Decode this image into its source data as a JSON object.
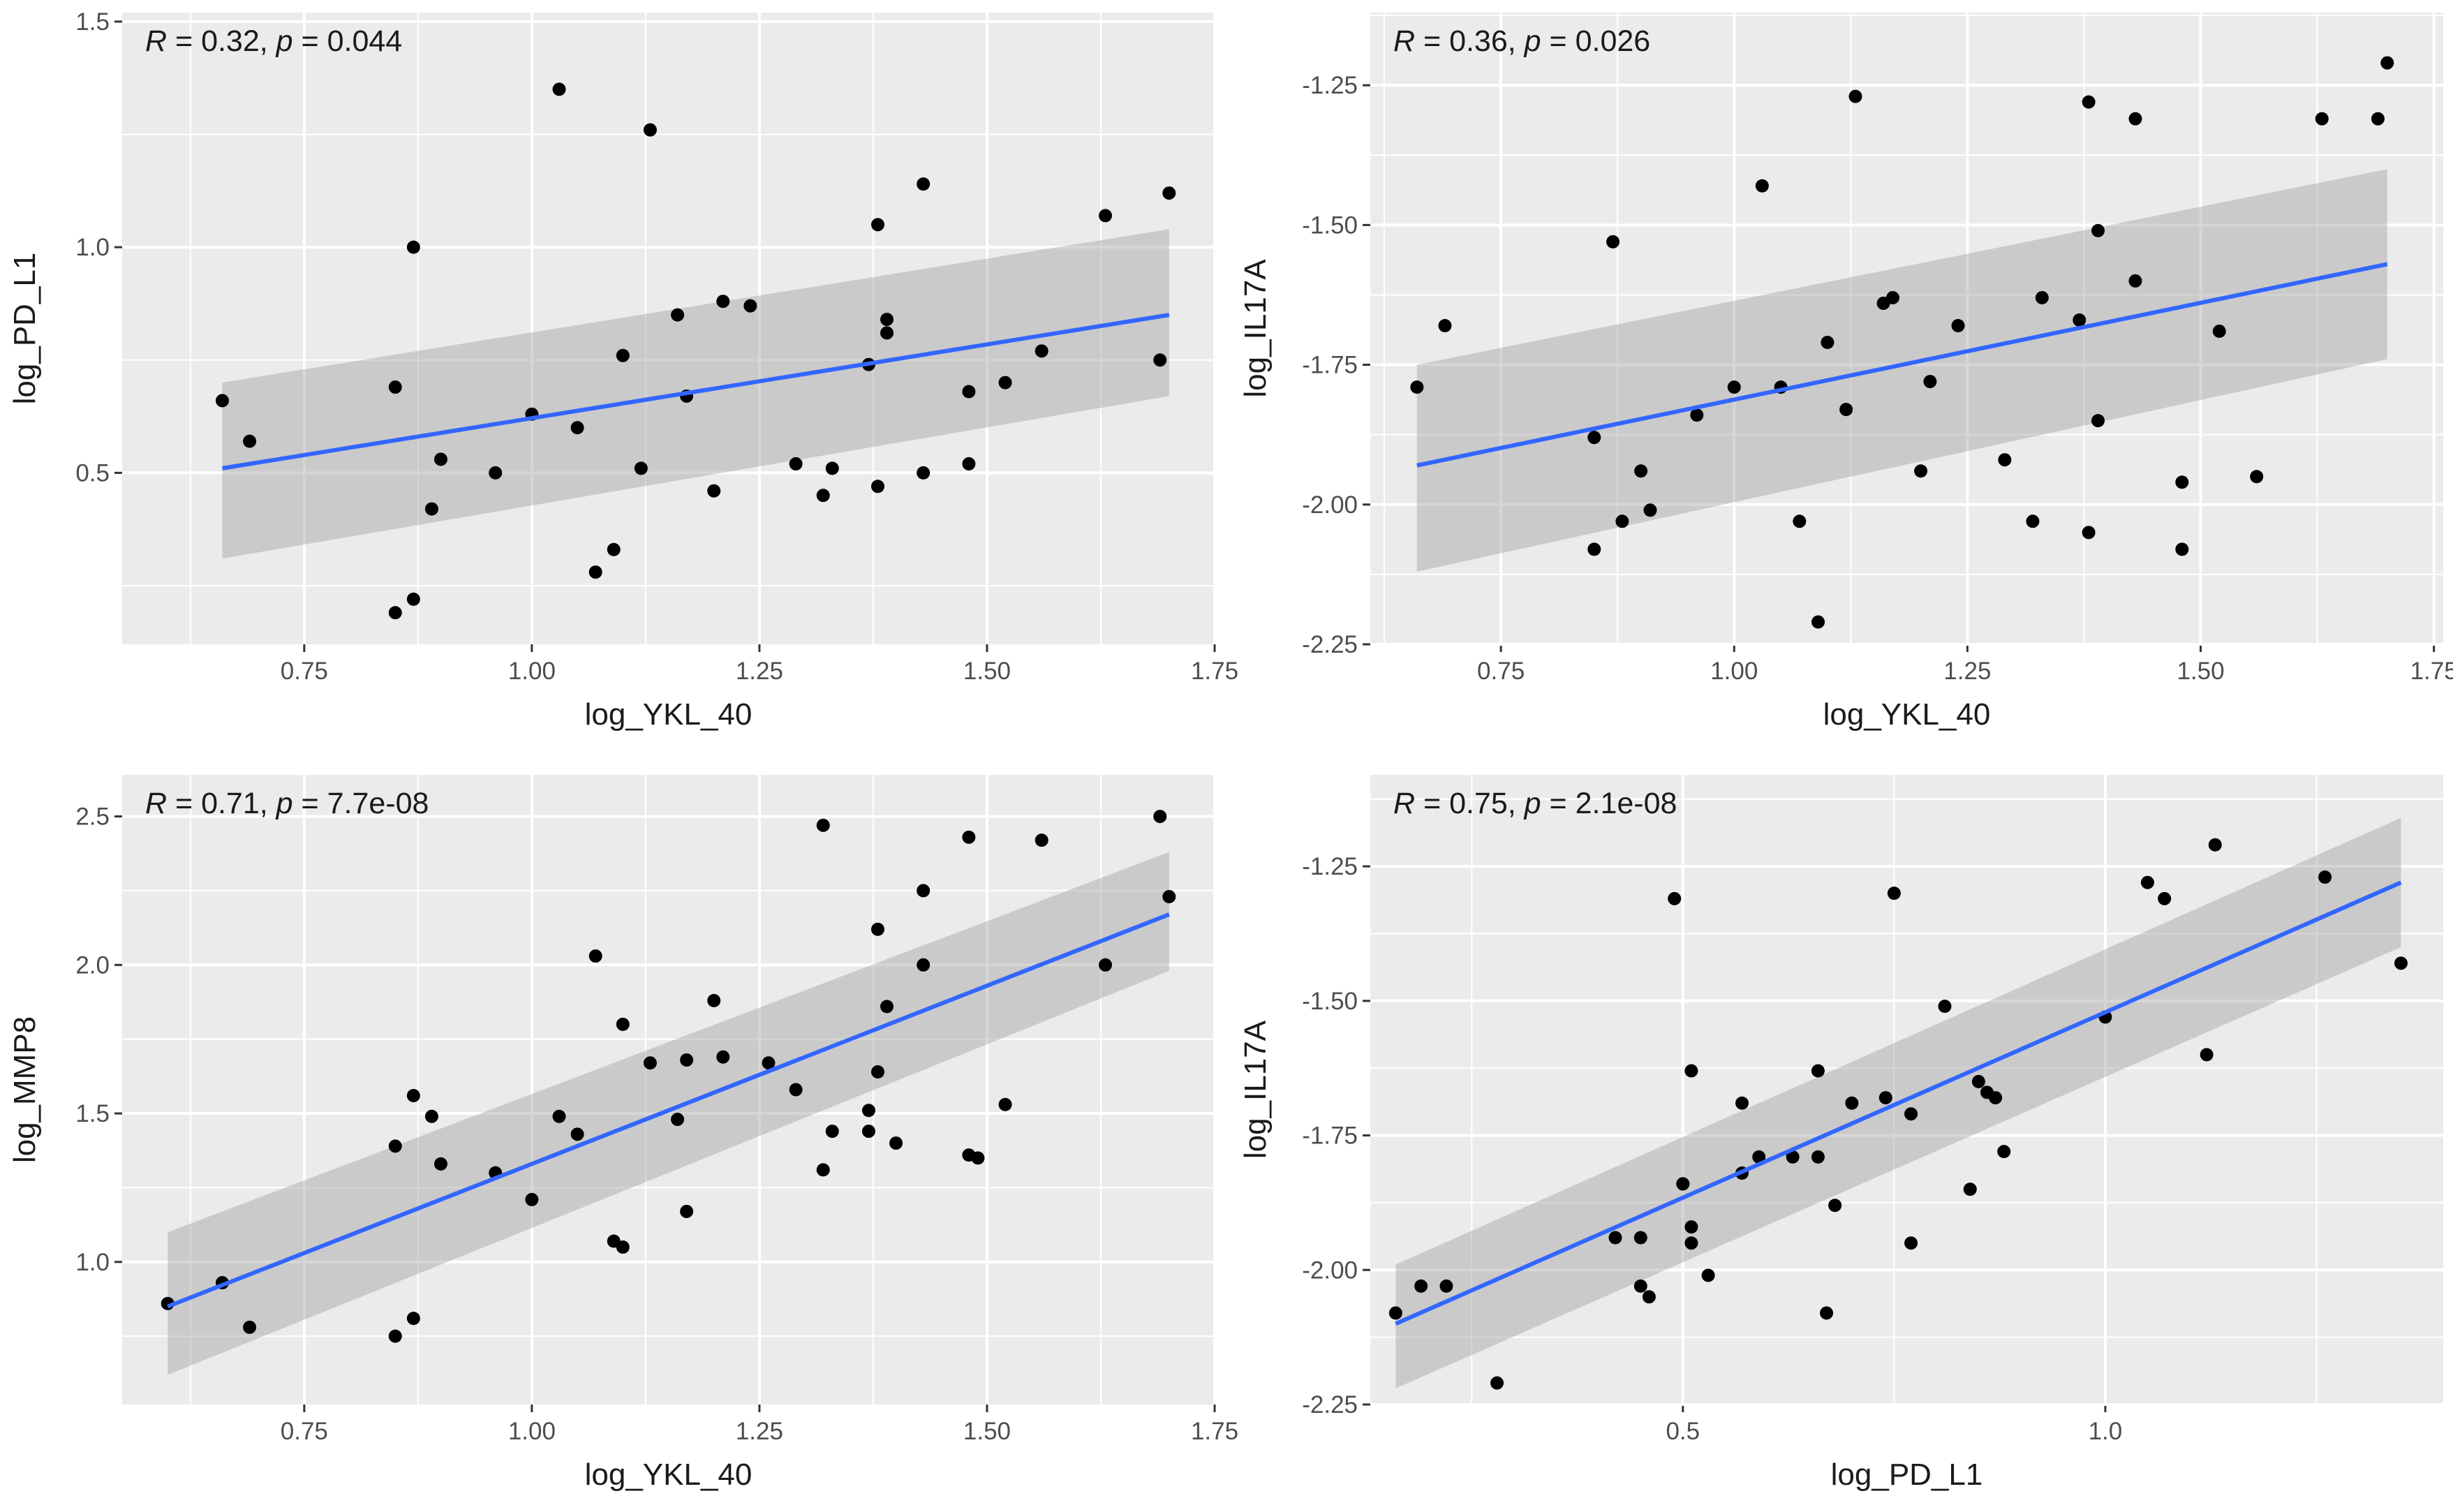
{
  "chart_data": [
    {
      "type": "scatter",
      "title": "",
      "xlabel": "log_YKL_40",
      "ylabel": "log_PD_L1",
      "xlim": [
        0.55,
        1.75
      ],
      "ylim": [
        0.12,
        1.52
      ],
      "xticks": [
        0.75,
        1.0,
        1.25,
        1.5,
        1.75
      ],
      "xtick_labels": [
        "0.75",
        "1.00",
        "1.25",
        "1.50",
        "1.75"
      ],
      "yticks": [
        0.5,
        1.0,
        1.5
      ],
      "ytick_labels": [
        "0.5",
        "1.0",
        "1.5"
      ],
      "grid": true,
      "annotation": {
        "r_symbol": "R",
        "r_text": " = 0.32, ",
        "p_symbol": "p",
        "p_text": " = 0.044"
      },
      "points": [
        [
          0.66,
          0.66
        ],
        [
          0.69,
          0.57
        ],
        [
          0.85,
          0.19
        ],
        [
          0.85,
          0.69
        ],
        [
          0.87,
          1.0
        ],
        [
          0.87,
          0.22
        ],
        [
          0.89,
          0.42
        ],
        [
          0.9,
          0.53
        ],
        [
          0.96,
          0.5
        ],
        [
          1.0,
          0.63
        ],
        [
          1.03,
          1.35
        ],
        [
          1.05,
          0.6
        ],
        [
          1.07,
          0.28
        ],
        [
          1.09,
          0.33
        ],
        [
          1.1,
          0.76
        ],
        [
          1.12,
          0.51
        ],
        [
          1.13,
          1.26
        ],
        [
          1.16,
          0.85
        ],
        [
          1.17,
          0.67
        ],
        [
          1.2,
          0.46
        ],
        [
          1.21,
          0.88
        ],
        [
          1.24,
          0.87
        ],
        [
          1.29,
          0.52
        ],
        [
          1.32,
          0.45
        ],
        [
          1.33,
          0.51
        ],
        [
          1.37,
          0.74
        ],
        [
          1.38,
          1.05
        ],
        [
          1.38,
          0.47
        ],
        [
          1.39,
          0.81
        ],
        [
          1.39,
          0.84
        ],
        [
          1.43,
          1.14
        ],
        [
          1.43,
          0.5
        ],
        [
          1.48,
          0.52
        ],
        [
          1.48,
          0.68
        ],
        [
          1.52,
          0.7
        ],
        [
          1.56,
          0.77
        ],
        [
          1.63,
          1.07
        ],
        [
          1.69,
          0.75
        ],
        [
          1.7,
          1.12
        ]
      ],
      "fit_line": {
        "x": [
          0.66,
          1.7
        ],
        "y": [
          0.51,
          0.85
        ]
      },
      "confidence_band": {
        "x": [
          0.66,
          1.7
        ],
        "upper": [
          0.7,
          1.04
        ],
        "lower": [
          0.31,
          0.67
        ]
      },
      "colors": {
        "points": "#000000",
        "line": "#3366FF",
        "band": "#999999",
        "panel": "#EBEBEB"
      }
    },
    {
      "type": "scatter",
      "title": "",
      "xlabel": "log_YKL_40",
      "ylabel": "log_IL17A",
      "xlim": [
        0.61,
        1.76
      ],
      "ylim": [
        -2.25,
        -1.12
      ],
      "xticks": [
        0.75,
        1.0,
        1.25,
        1.5,
        1.75
      ],
      "xtick_labels": [
        "0.75",
        "1.00",
        "1.25",
        "1.50",
        "1.75"
      ],
      "yticks": [
        -2.25,
        -2.0,
        -1.75,
        -1.5,
        -1.25
      ],
      "ytick_labels": [
        "-2.25",
        "-2.00",
        "-1.75",
        "-1.50",
        "-1.25"
      ],
      "grid": true,
      "annotation": {
        "r_symbol": "R",
        "r_text": " = 0.36, ",
        "p_symbol": "p",
        "p_text": " = 0.026"
      },
      "points": [
        [
          0.66,
          -1.79
        ],
        [
          0.69,
          -1.68
        ],
        [
          0.85,
          -1.88
        ],
        [
          0.85,
          -2.08
        ],
        [
          0.87,
          -1.53
        ],
        [
          0.88,
          -2.03
        ],
        [
          0.9,
          -1.94
        ],
        [
          0.91,
          -2.01
        ],
        [
          0.96,
          -1.84
        ],
        [
          1.0,
          -1.79
        ],
        [
          1.03,
          -1.43
        ],
        [
          1.05,
          -1.79
        ],
        [
          1.07,
          -2.03
        ],
        [
          1.09,
          -2.21
        ],
        [
          1.1,
          -1.71
        ],
        [
          1.12,
          -1.83
        ],
        [
          1.13,
          -1.27
        ],
        [
          1.16,
          -1.64
        ],
        [
          1.17,
          -1.63
        ],
        [
          1.2,
          -1.94
        ],
        [
          1.21,
          -1.78
        ],
        [
          1.24,
          -1.68
        ],
        [
          1.29,
          -1.92
        ],
        [
          1.32,
          -2.03
        ],
        [
          1.33,
          -1.63
        ],
        [
          1.37,
          -1.67
        ],
        [
          1.38,
          -1.28
        ],
        [
          1.38,
          -2.05
        ],
        [
          1.39,
          -1.51
        ],
        [
          1.39,
          -1.85
        ],
        [
          1.43,
          -1.6
        ],
        [
          1.43,
          -1.31
        ],
        [
          1.48,
          -1.96
        ],
        [
          1.48,
          -2.08
        ],
        [
          1.52,
          -1.69
        ],
        [
          1.56,
          -1.95
        ],
        [
          1.63,
          -1.31
        ],
        [
          1.69,
          -1.31
        ],
        [
          1.7,
          -1.21
        ]
      ],
      "fit_line": {
        "x": [
          0.66,
          1.7
        ],
        "y": [
          -1.93,
          -1.57
        ]
      },
      "confidence_band": {
        "x": [
          0.66,
          1.7
        ],
        "upper": [
          -1.75,
          -1.4
        ],
        "lower": [
          -2.12,
          -1.74
        ]
      },
      "colors": {
        "points": "#000000",
        "line": "#3366FF",
        "band": "#999999",
        "panel": "#EBEBEB"
      }
    },
    {
      "type": "scatter",
      "title": "",
      "xlabel": "log_YKL_40",
      "ylabel": "log_MMP8",
      "xlim": [
        0.55,
        1.75
      ],
      "ylim": [
        0.52,
        2.64
      ],
      "xticks": [
        0.75,
        1.0,
        1.25,
        1.5,
        1.75
      ],
      "xtick_labels": [
        "0.75",
        "1.00",
        "1.25",
        "1.50",
        "1.75"
      ],
      "yticks": [
        1.0,
        1.5,
        2.0,
        2.5
      ],
      "ytick_labels": [
        "1.0",
        "1.5",
        "2.0",
        "2.5"
      ],
      "grid": true,
      "annotation": {
        "r_symbol": "R",
        "r_text": " = 0.71, ",
        "p_symbol": "p",
        "p_text": " = 7.7e-08"
      },
      "points": [
        [
          0.6,
          0.86
        ],
        [
          0.66,
          0.93
        ],
        [
          0.69,
          0.78
        ],
        [
          0.85,
          0.75
        ],
        [
          0.85,
          1.39
        ],
        [
          0.87,
          1.56
        ],
        [
          0.87,
          0.81
        ],
        [
          0.89,
          1.49
        ],
        [
          0.9,
          1.33
        ],
        [
          0.96,
          1.3
        ],
        [
          1.0,
          1.21
        ],
        [
          1.03,
          1.49
        ],
        [
          1.05,
          1.43
        ],
        [
          1.07,
          2.03
        ],
        [
          1.09,
          1.07
        ],
        [
          1.1,
          1.05
        ],
        [
          1.1,
          1.8
        ],
        [
          1.13,
          1.67
        ],
        [
          1.16,
          1.48
        ],
        [
          1.17,
          1.68
        ],
        [
          1.17,
          1.17
        ],
        [
          1.2,
          1.88
        ],
        [
          1.21,
          1.69
        ],
        [
          1.26,
          1.67
        ],
        [
          1.29,
          1.58
        ],
        [
          1.32,
          2.47
        ],
        [
          1.32,
          1.31
        ],
        [
          1.33,
          1.44
        ],
        [
          1.37,
          1.51
        ],
        [
          1.37,
          1.44
        ],
        [
          1.38,
          1.64
        ],
        [
          1.38,
          2.12
        ],
        [
          1.39,
          1.86
        ],
        [
          1.4,
          1.4
        ],
        [
          1.43,
          2.25
        ],
        [
          1.43,
          2.0
        ],
        [
          1.48,
          1.36
        ],
        [
          1.48,
          2.43
        ],
        [
          1.49,
          1.35
        ],
        [
          1.52,
          1.53
        ],
        [
          1.56,
          2.42
        ],
        [
          1.63,
          2.0
        ],
        [
          1.69,
          2.5
        ],
        [
          1.7,
          2.23
        ]
      ],
      "fit_line": {
        "x": [
          0.6,
          1.7
        ],
        "y": [
          0.85,
          2.17
        ]
      },
      "confidence_band": {
        "x": [
          0.6,
          1.7
        ],
        "upper": [
          1.1,
          2.38
        ],
        "lower": [
          0.62,
          1.98
        ]
      },
      "colors": {
        "points": "#000000",
        "line": "#3366FF",
        "band": "#999999",
        "panel": "#EBEBEB"
      }
    },
    {
      "type": "scatter",
      "title": "",
      "xlabel": "log_PD_L1",
      "ylabel": "log_IL17A",
      "xlim": [
        0.13,
        1.4
      ],
      "ylim": [
        -2.25,
        -1.08
      ],
      "xticks": [
        0.5,
        1.0
      ],
      "xtick_labels": [
        "0.5",
        "1.0"
      ],
      "yticks": [
        -2.25,
        -2.0,
        -1.75,
        -1.5,
        -1.25
      ],
      "ytick_labels": [
        "-2.25",
        "-2.00",
        "-1.75",
        "-1.50",
        "-1.25"
      ],
      "grid": true,
      "annotation": {
        "r_symbol": "R",
        "r_text": " = 0.75, ",
        "p_symbol": "p",
        "p_text": " = 2.1e-08"
      },
      "points": [
        [
          0.16,
          -2.08
        ],
        [
          0.19,
          -2.03
        ],
        [
          0.22,
          -2.03
        ],
        [
          0.28,
          -2.21
        ],
        [
          0.42,
          -1.94
        ],
        [
          0.45,
          -2.03
        ],
        [
          0.45,
          -1.94
        ],
        [
          0.46,
          -2.05
        ],
        [
          0.49,
          -1.31
        ],
        [
          0.5,
          -1.84
        ],
        [
          0.5,
          -1.84
        ],
        [
          0.51,
          -1.63
        ],
        [
          0.51,
          -1.92
        ],
        [
          0.51,
          -1.95
        ],
        [
          0.53,
          -2.01
        ],
        [
          0.57,
          -1.69
        ],
        [
          0.57,
          -1.82
        ],
        [
          0.59,
          -1.79
        ],
        [
          0.63,
          -1.79
        ],
        [
          0.66,
          -1.79
        ],
        [
          0.66,
          -1.63
        ],
        [
          0.67,
          -2.08
        ],
        [
          0.68,
          -1.88
        ],
        [
          0.7,
          -1.69
        ],
        [
          0.74,
          -1.68
        ],
        [
          0.75,
          -1.3
        ],
        [
          0.77,
          -1.71
        ],
        [
          0.77,
          -1.95
        ],
        [
          0.81,
          -1.51
        ],
        [
          0.84,
          -1.85
        ],
        [
          0.85,
          -1.65
        ],
        [
          0.86,
          -1.67
        ],
        [
          0.87,
          -1.68
        ],
        [
          0.88,
          -1.78
        ],
        [
          1.0,
          -1.53
        ],
        [
          1.05,
          -1.28
        ],
        [
          1.07,
          -1.31
        ],
        [
          1.12,
          -1.6
        ],
        [
          1.13,
          -1.21
        ],
        [
          1.26,
          -1.27
        ],
        [
          1.35,
          -1.43
        ]
      ],
      "fit_line": {
        "x": [
          0.16,
          1.35
        ],
        "y": [
          -2.1,
          -1.28
        ]
      },
      "confidence_band": {
        "x": [
          0.16,
          1.35
        ],
        "upper": [
          -1.99,
          -1.16
        ],
        "lower": [
          -2.22,
          -1.4
        ]
      },
      "colors": {
        "points": "#000000",
        "line": "#3366FF",
        "band": "#999999",
        "panel": "#EBEBEB"
      }
    }
  ]
}
